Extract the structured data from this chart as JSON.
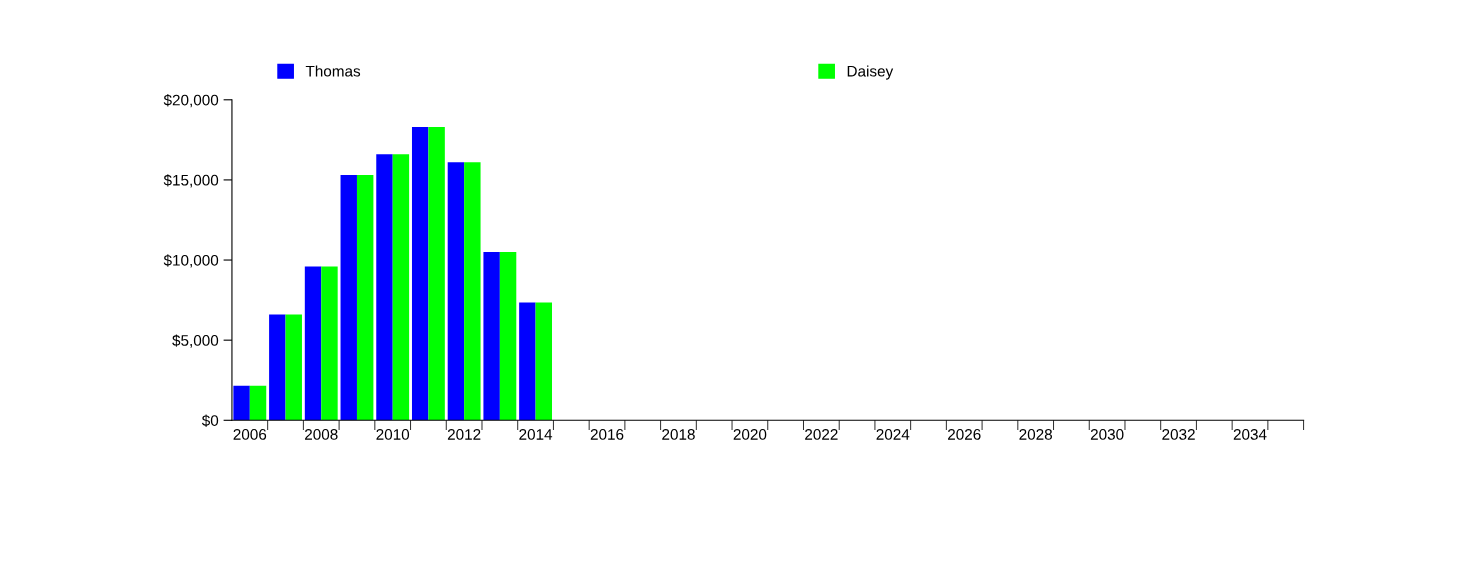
{
  "chart_data": {
    "type": "bar",
    "categories": [
      "2006",
      null,
      "2008",
      null,
      "2010",
      null,
      "2012",
      null,
      "2014",
      null,
      "2016",
      null,
      "2018",
      null,
      "2020",
      null,
      "2022",
      null,
      "2024",
      null,
      "2026",
      null,
      "2028",
      null,
      "2030",
      null,
      "2032",
      null,
      "2034",
      null
    ],
    "series": [
      {
        "name": "Thomas",
        "color": "#0000ff",
        "values": [
          2150,
          6600,
          9600,
          15300,
          16600,
          18300,
          16100,
          10500,
          7350,
          0,
          0,
          0,
          0,
          0,
          0,
          0,
          0,
          0,
          0,
          0,
          0,
          0,
          0,
          0,
          0,
          0,
          0,
          0,
          0,
          0
        ]
      },
      {
        "name": "Daisey",
        "color": "#00ff00",
        "values": [
          2150,
          6600,
          9600,
          15300,
          16600,
          18300,
          16100,
          10500,
          7350,
          0,
          0,
          0,
          0,
          0,
          0,
          0,
          0,
          0,
          0,
          0,
          0,
          0,
          0,
          0,
          0,
          0,
          0,
          0,
          0,
          0
        ]
      }
    ],
    "ylim": [
      0,
      20000
    ],
    "yticks": [
      {
        "value": 0,
        "label": "$0"
      },
      {
        "value": 5000,
        "label": "$5,000"
      },
      {
        "value": 10000,
        "label": "$10,000"
      },
      {
        "value": 15000,
        "label": "$15,000"
      },
      {
        "value": 20000,
        "label": "$20,000"
      }
    ],
    "grid": false,
    "legend": "top"
  }
}
